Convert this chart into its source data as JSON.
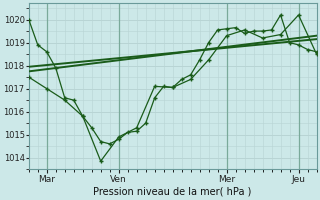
{
  "xlabel": "Pression niveau de la mer( hPa )",
  "ylim": [
    1013.5,
    1020.7
  ],
  "yticks": [
    1014,
    1015,
    1016,
    1017,
    1018,
    1019,
    1020
  ],
  "background_color": "#cce8e8",
  "grid_color": "#b8d4d4",
  "line_color": "#1a5c1a",
  "xtick_labels": [
    "Mar",
    "Ven",
    "Mer",
    "Jeu"
  ],
  "xtick_positions": [
    6,
    30,
    66,
    90
  ],
  "vline_positions": [
    6,
    30,
    66,
    90
  ],
  "xlim": [
    0,
    96
  ],
  "line1_x": [
    0,
    3,
    6,
    9,
    12,
    15,
    18,
    21,
    24,
    27,
    30,
    33,
    36,
    39,
    42,
    45,
    48,
    51,
    54,
    57,
    60,
    63,
    66,
    69,
    72,
    75,
    78,
    81,
    84,
    87,
    90,
    93,
    96
  ],
  "line1_y": [
    1020.0,
    1018.9,
    1018.6,
    1017.9,
    1016.6,
    1016.5,
    1015.8,
    1015.3,
    1014.7,
    1014.6,
    1014.8,
    1015.1,
    1015.15,
    1015.5,
    1016.6,
    1017.1,
    1017.05,
    1017.4,
    1017.6,
    1018.25,
    1019.0,
    1019.55,
    1019.6,
    1019.65,
    1019.4,
    1019.5,
    1019.5,
    1019.55,
    1020.2,
    1019.0,
    1018.9,
    1018.7,
    1018.6
  ],
  "line2_x": [
    0,
    6,
    12,
    18,
    24,
    30,
    36,
    42,
    48,
    54,
    60,
    66,
    72,
    78,
    84,
    90,
    96
  ],
  "line2_y": [
    1017.5,
    1017.0,
    1016.5,
    1015.8,
    1013.85,
    1014.9,
    1015.3,
    1017.1,
    1017.05,
    1017.4,
    1018.25,
    1019.3,
    1019.55,
    1019.2,
    1019.35,
    1020.2,
    1018.5
  ],
  "line3_x": [
    0,
    96
  ],
  "line3_y": [
    1017.75,
    1019.3
  ],
  "line4_x": [
    0,
    96
  ],
  "line4_y": [
    1017.95,
    1019.15
  ]
}
